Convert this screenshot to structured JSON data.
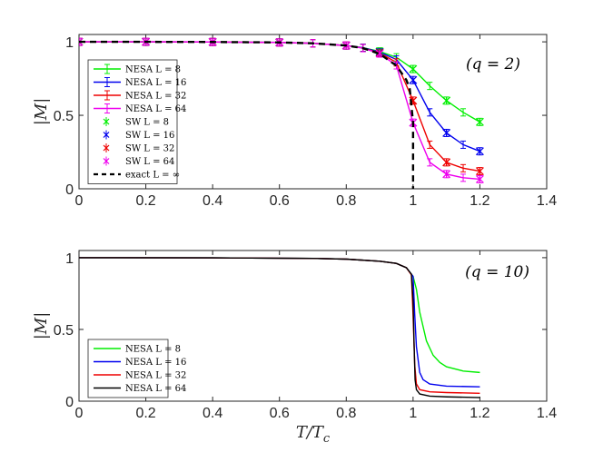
{
  "chart_data": [
    {
      "type": "line",
      "panel": "top",
      "annotation": "(q = 2)",
      "xlabel": "",
      "ylabel": "|M|",
      "xlim": [
        0,
        1.4
      ],
      "ylim": [
        0,
        1.05
      ],
      "xticks": [
        "0",
        "0.2",
        "0.4",
        "0.6",
        "0.8",
        "1",
        "1.2",
        "1.4"
      ],
      "yticks": [
        "0",
        "0.5",
        "1"
      ],
      "legend_position": "left",
      "series": [
        {
          "name": "NESA L = 8",
          "color": "#00ee00",
          "style": "errorbar",
          "x": [
            0,
            0.2,
            0.4,
            0.6,
            0.7,
            0.8,
            0.85,
            0.9,
            0.95,
            1.0,
            1.05,
            1.1,
            1.15,
            1.2
          ],
          "y": [
            1.0,
            1.0,
            0.999,
            0.996,
            0.99,
            0.975,
            0.96,
            0.935,
            0.895,
            0.815,
            0.7,
            0.6,
            0.52,
            0.455
          ]
        },
        {
          "name": "NESA L = 16",
          "color": "#0000ee",
          "style": "errorbar",
          "x": [
            0,
            0.2,
            0.4,
            0.6,
            0.7,
            0.8,
            0.85,
            0.9,
            0.95,
            1.0,
            1.05,
            1.1,
            1.15,
            1.2
          ],
          "y": [
            1.0,
            1.0,
            0.999,
            0.996,
            0.99,
            0.975,
            0.96,
            0.93,
            0.88,
            0.74,
            0.52,
            0.38,
            0.3,
            0.255
          ]
        },
        {
          "name": "NESA L = 32",
          "color": "#ee0000",
          "style": "errorbar",
          "x": [
            0,
            0.2,
            0.4,
            0.6,
            0.7,
            0.8,
            0.85,
            0.9,
            0.95,
            1.0,
            1.05,
            1.1,
            1.15,
            1.2
          ],
          "y": [
            1.0,
            1.0,
            0.999,
            0.996,
            0.99,
            0.975,
            0.958,
            0.925,
            0.86,
            0.6,
            0.3,
            0.18,
            0.14,
            0.12
          ]
        },
        {
          "name": "NESA L = 64",
          "color": "#ee00ee",
          "style": "errorbar",
          "x": [
            0,
            0.2,
            0.4,
            0.6,
            0.7,
            0.8,
            0.85,
            0.9,
            0.95,
            1.0,
            1.05,
            1.1,
            1.15,
            1.2
          ],
          "y": [
            1.0,
            1.0,
            0.999,
            0.996,
            0.99,
            0.975,
            0.957,
            0.92,
            0.84,
            0.45,
            0.18,
            0.1,
            0.075,
            0.065
          ]
        },
        {
          "name": "SW L = 8",
          "color": "#00ee00",
          "style": "marker",
          "x": [
            0,
            0.2,
            0.4,
            0.6,
            0.8,
            0.9,
            1.0,
            1.1,
            1.2
          ],
          "y": [
            1.0,
            1.0,
            0.999,
            0.996,
            0.975,
            0.935,
            0.815,
            0.6,
            0.455
          ]
        },
        {
          "name": "SW L = 16",
          "color": "#0000ee",
          "style": "marker",
          "x": [
            0,
            0.2,
            0.4,
            0.6,
            0.8,
            0.9,
            1.0,
            1.1,
            1.2
          ],
          "y": [
            1.0,
            1.0,
            0.999,
            0.996,
            0.975,
            0.93,
            0.74,
            0.38,
            0.255
          ]
        },
        {
          "name": "SW L = 32",
          "color": "#ee0000",
          "style": "marker",
          "x": [
            0,
            0.2,
            0.4,
            0.6,
            0.8,
            0.9,
            1.0,
            1.1,
            1.2
          ],
          "y": [
            1.0,
            1.0,
            0.999,
            0.996,
            0.975,
            0.925,
            0.6,
            0.18,
            0.12
          ]
        },
        {
          "name": "SW L = 64",
          "color": "#ee00ee",
          "style": "marker",
          "x": [
            0,
            0.2,
            0.4,
            0.6,
            0.8,
            0.9,
            1.0,
            1.1,
            1.2
          ],
          "y": [
            1.0,
            1.0,
            0.999,
            0.996,
            0.975,
            0.92,
            0.45,
            0.1,
            0.065
          ]
        },
        {
          "name": "exact L = ∞",
          "color": "#000000",
          "style": "dashed",
          "x": [
            0,
            0.2,
            0.4,
            0.6,
            0.7,
            0.8,
            0.85,
            0.9,
            0.95,
            0.98,
            0.99,
            1.0,
            1.0
          ],
          "y": [
            1.0,
            1.0,
            0.999,
            0.996,
            0.99,
            0.975,
            0.957,
            0.918,
            0.838,
            0.74,
            0.68,
            0.45,
            0.0
          ]
        }
      ]
    },
    {
      "type": "line",
      "panel": "bottom",
      "annotation": "(q = 10)",
      "xlabel": "T/Tc",
      "ylabel": "|M|",
      "xlim": [
        0,
        1.4
      ],
      "ylim": [
        0,
        1.05
      ],
      "xticks": [
        "0",
        "0.2",
        "0.4",
        "0.6",
        "0.8",
        "1",
        "1.2",
        "1.4"
      ],
      "yticks": [
        "0",
        "0.5",
        "1"
      ],
      "legend_position": "bottom-left",
      "series": [
        {
          "name": "NESA L = 8",
          "color": "#00ee00",
          "x": [
            0,
            0.4,
            0.7,
            0.8,
            0.9,
            0.95,
            0.98,
            1.0,
            1.01,
            1.02,
            1.04,
            1.06,
            1.08,
            1.1,
            1.15,
            1.2
          ],
          "y": [
            1.0,
            0.999,
            0.995,
            0.99,
            0.975,
            0.96,
            0.93,
            0.87,
            0.78,
            0.62,
            0.42,
            0.32,
            0.27,
            0.24,
            0.21,
            0.2
          ]
        },
        {
          "name": "NESA L = 16",
          "color": "#0000ee",
          "x": [
            0,
            0.4,
            0.7,
            0.8,
            0.9,
            0.95,
            0.98,
            1.0,
            1.005,
            1.01,
            1.02,
            1.03,
            1.05,
            1.1,
            1.2
          ],
          "y": [
            1.0,
            0.999,
            0.995,
            0.99,
            0.975,
            0.96,
            0.93,
            0.87,
            0.6,
            0.38,
            0.2,
            0.15,
            0.12,
            0.105,
            0.1
          ]
        },
        {
          "name": "NESA L = 32",
          "color": "#ee0000",
          "x": [
            0,
            0.4,
            0.7,
            0.8,
            0.9,
            0.95,
            0.98,
            0.995,
            1.0,
            1.005,
            1.01,
            1.02,
            1.05,
            1.1,
            1.2
          ],
          "y": [
            1.0,
            0.999,
            0.995,
            0.99,
            0.975,
            0.96,
            0.93,
            0.88,
            0.6,
            0.25,
            0.12,
            0.08,
            0.065,
            0.06,
            0.055
          ]
        },
        {
          "name": "NESA L = 64",
          "color": "#000000",
          "x": [
            0,
            0.4,
            0.7,
            0.8,
            0.9,
            0.95,
            0.98,
            0.995,
            1.0,
            1.003,
            1.006,
            1.01,
            1.02,
            1.05,
            1.1,
            1.2
          ],
          "y": [
            1.0,
            0.999,
            0.995,
            0.99,
            0.975,
            0.96,
            0.93,
            0.885,
            0.7,
            0.4,
            0.15,
            0.08,
            0.05,
            0.035,
            0.03,
            0.025
          ]
        }
      ]
    }
  ]
}
